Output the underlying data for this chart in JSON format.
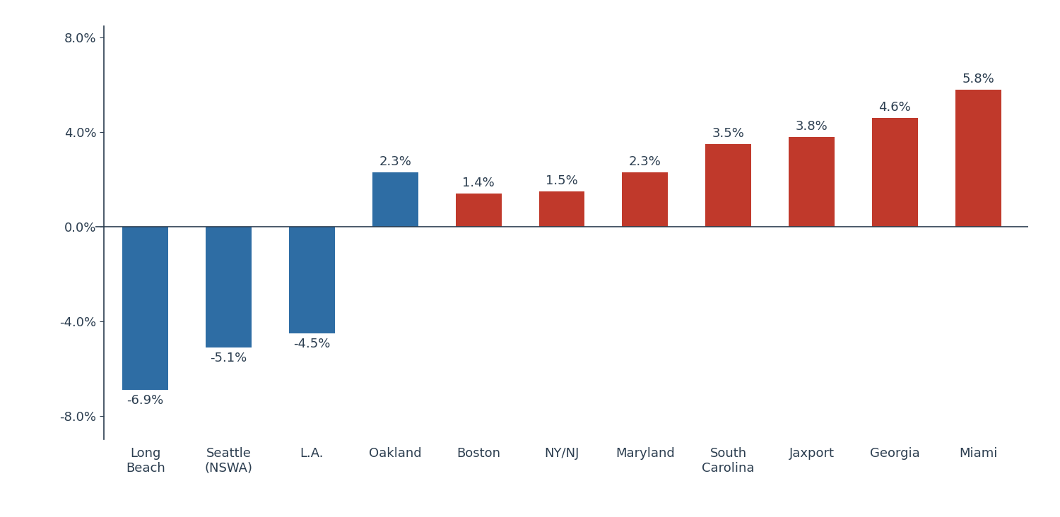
{
  "categories": [
    "Long\nBeach",
    "Seattle\n(NSWA)",
    "L.A.",
    "Oakland",
    "Boston",
    "NY/NJ",
    "Maryland",
    "South\nCarolina",
    "Jaxport",
    "Georgia",
    "Miami"
  ],
  "values": [
    -6.9,
    -5.1,
    -4.5,
    2.3,
    1.4,
    1.5,
    2.3,
    3.5,
    3.8,
    4.6,
    5.8
  ],
  "bar_colors": [
    "#2E6DA4",
    "#2E6DA4",
    "#2E6DA4",
    "#2E6DA4",
    "#C0392B",
    "#C0392B",
    "#C0392B",
    "#C0392B",
    "#C0392B",
    "#C0392B",
    "#C0392B"
  ],
  "ylim": [
    -9.0,
    8.5
  ],
  "yticks": [
    -8.0,
    -4.0,
    0.0,
    4.0,
    8.0
  ],
  "background_color": "#FFFFFF",
  "label_fontsize": 13,
  "tick_fontsize": 13,
  "bar_width": 0.55,
  "fig_width": 15.0,
  "fig_height": 7.32,
  "spine_color": "#2C3E50",
  "text_color": "#2C3E50",
  "zero_line_color": "#2C3E50"
}
